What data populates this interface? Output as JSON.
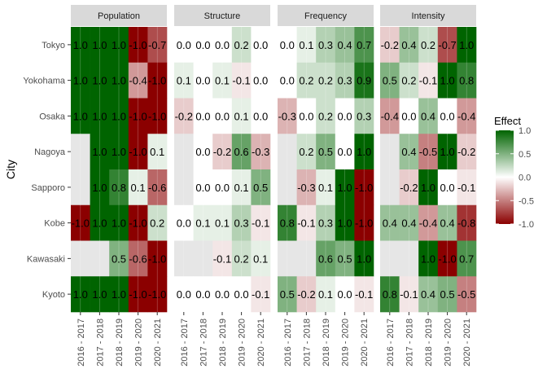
{
  "chart_data": {
    "type": "heatmap",
    "y_axis_label": "City",
    "panels": [
      "Population",
      "Structure",
      "Frequency",
      "Intensity"
    ],
    "periods": [
      "2016 - 2017",
      "2017 - 2018",
      "2018 - 2019",
      "2019 - 2020",
      "2020 - 2021"
    ],
    "cities": [
      "Tokyo",
      "Yokohama",
      "Osaka",
      "Nagoya",
      "Sapporo",
      "Kobe",
      "Kawasaki",
      "Kyoto"
    ],
    "values": {
      "Population": {
        "Tokyo": [
          1.0,
          1.0,
          1.0,
          -1.0,
          -0.7
        ],
        "Yokohama": [
          1.0,
          1.0,
          1.0,
          -0.4,
          -1.0
        ],
        "Osaka": [
          1.0,
          1.0,
          1.0,
          -1.0,
          -1.0
        ],
        "Nagoya": [
          null,
          1.0,
          1.0,
          -1.0,
          0.1
        ],
        "Sapporo": [
          null,
          1.0,
          0.8,
          0.1,
          -0.6
        ],
        "Kobe": [
          -1.0,
          1.0,
          1.0,
          -1.0,
          0.2
        ],
        "Kawasaki": [
          null,
          null,
          0.5,
          -0.6,
          -1.0
        ],
        "Kyoto": [
          1.0,
          1.0,
          1.0,
          -1.0,
          -1.0
        ]
      },
      "Structure": {
        "Tokyo": [
          -0.0,
          -0.0,
          -0.0,
          0.2,
          -0.0
        ],
        "Yokohama": [
          0.1,
          0.0,
          0.1,
          -0.1,
          -0.0
        ],
        "Osaka": [
          -0.2,
          0.0,
          0.0,
          0.1,
          -0.0
        ],
        "Nagoya": [
          null,
          0.0,
          -0.2,
          0.6,
          -0.3
        ],
        "Sapporo": [
          null,
          0.0,
          0.0,
          0.1,
          0.5
        ],
        "Kobe": [
          0.0,
          0.1,
          0.1,
          0.3,
          -0.1
        ],
        "Kawasaki": [
          null,
          null,
          -0.1,
          0.2,
          0.1
        ],
        "Kyoto": [
          0.0,
          0.0,
          -0.0,
          0.0,
          -0.1
        ]
      },
      "Frequency": {
        "Tokyo": [
          -0.0,
          0.1,
          0.3,
          0.4,
          0.7
        ],
        "Yokohama": [
          -0.0,
          0.2,
          0.2,
          0.3,
          0.9
        ],
        "Osaka": [
          -0.3,
          -0.0,
          0.2,
          0.0,
          0.3
        ],
        "Nagoya": [
          null,
          0.2,
          0.5,
          0.0,
          1.0
        ],
        "Sapporo": [
          null,
          -0.3,
          0.1,
          1.0,
          -1.0
        ],
        "Kobe": [
          0.8,
          -0.1,
          0.3,
          1.0,
          -1.0
        ],
        "Kawasaki": [
          null,
          null,
          0.6,
          0.5,
          1.0
        ],
        "Kyoto": [
          0.5,
          -0.2,
          0.1,
          -0.0,
          -0.1
        ]
      },
      "Intensity": {
        "Tokyo": [
          -0.2,
          0.4,
          0.2,
          -0.7,
          1.0
        ],
        "Yokohama": [
          0.5,
          0.2,
          -0.1,
          1.0,
          0.8
        ],
        "Osaka": [
          -0.4,
          0.0,
          0.4,
          -0.0,
          -0.4
        ],
        "Nagoya": [
          null,
          0.4,
          -0.5,
          1.0,
          -0.2
        ],
        "Sapporo": [
          null,
          -0.2,
          1.0,
          0.0,
          -0.1
        ],
        "Kobe": [
          0.4,
          0.4,
          -0.4,
          0.4,
          -0.8
        ],
        "Kawasaki": [
          null,
          null,
          1.0,
          -1.0,
          0.7
        ],
        "Kyoto": [
          0.8,
          -0.1,
          0.4,
          0.5,
          -0.5
        ]
      }
    },
    "value_range": [
      -1.0,
      1.0
    ],
    "legend": {
      "title": "Effect",
      "ticks": [
        "1.0",
        "0.5",
        "0.0",
        "-0.5",
        "-1.0"
      ],
      "placement": "right"
    },
    "colors": {
      "low": "#8b0000",
      "mid": "#ffffff",
      "high": "#006400",
      "missing": "#e6e6e6",
      "panel_strip": "#d9d9d9",
      "panel_background": "#ebebeb"
    },
    "grid": true
  }
}
